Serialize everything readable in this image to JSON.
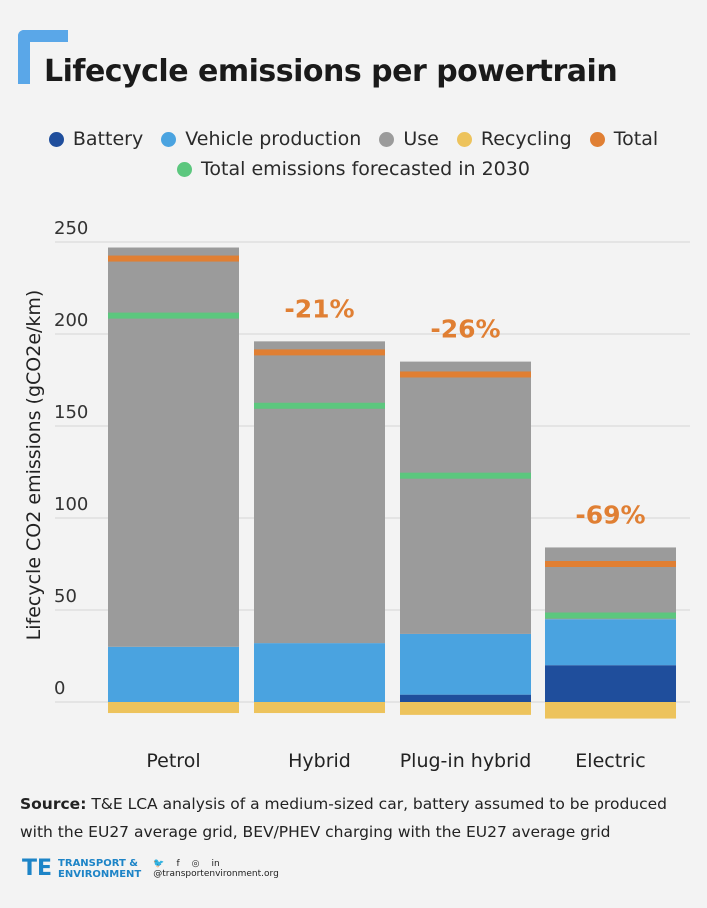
{
  "title": "Lifecycle emissions per powertrain",
  "legend_row1": [
    {
      "label": "Battery",
      "color": "#1f4e9c"
    },
    {
      "label": "Vehicle production",
      "color": "#4aa3e0"
    },
    {
      "label": "Use",
      "color": "#9b9b9b"
    },
    {
      "label": "Recycling",
      "color": "#edc35c"
    },
    {
      "label": "Total",
      "color": "#e07f33"
    }
  ],
  "legend_row2": [
    {
      "label": "Total emissions forecasted in 2030",
      "color": "#5cc77e"
    }
  ],
  "chart_data": {
    "type": "bar",
    "stacked": true,
    "categories": [
      "Petrol",
      "Hybrid",
      "Plug-in hybrid",
      "Electric"
    ],
    "ylabel": "Lifecycle CO2 emissions (gCO2e/km)",
    "ylim": [
      -10,
      250
    ],
    "yticks": [
      0,
      50,
      100,
      150,
      200,
      250
    ],
    "series": [
      {
        "name": "Battery",
        "color": "#1f4e9c",
        "values": [
          0,
          0,
          4,
          20
        ]
      },
      {
        "name": "Vehicle production",
        "color": "#4aa3e0",
        "values": [
          30,
          32,
          33,
          25
        ]
      },
      {
        "name": "Use",
        "color": "#9b9b9b",
        "values": [
          217,
          164,
          148,
          39
        ]
      },
      {
        "name": "Recycling",
        "color": "#edc35c",
        "values": [
          -6,
          -6,
          -7,
          -9
        ]
      }
    ],
    "total": {
      "name": "Total",
      "color": "#e07f33",
      "values": [
        241,
        190,
        178,
        75
      ]
    },
    "forecast_2030": {
      "name": "Total emissions forecasted in 2030",
      "color": "#5cc77e",
      "values": [
        210,
        161,
        123,
        47
      ]
    },
    "reduction_labels": [
      "",
      "-21%",
      "-26%",
      "-69%"
    ]
  },
  "source": {
    "bold": "Source:",
    "text": " T&E LCA analysis of a medium-sized car, battery assumed to be produced with the EU27 average grid, BEV/PHEV charging with the EU27 average grid"
  },
  "footer": {
    "logo": "TE",
    "org_line1": "TRANSPORT &",
    "org_line2": "ENVIRONMENT",
    "social_icons": [
      "twitter-icon",
      "facebook-icon",
      "instagram-icon",
      "linkedin-icon"
    ],
    "handle": "@transportenvironment.org"
  }
}
